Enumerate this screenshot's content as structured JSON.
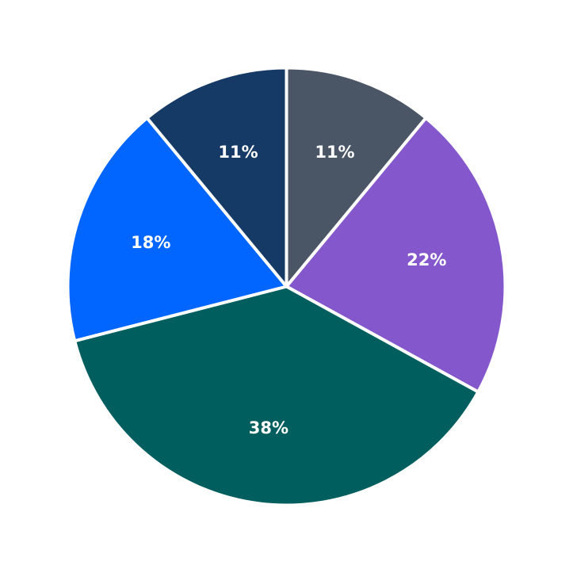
{
  "chart_data": {
    "type": "pie",
    "title": "",
    "start_angle_deg": 90,
    "direction": "clockwise",
    "slices": [
      {
        "value": 11,
        "label": "11%",
        "color": "#4a5565"
      },
      {
        "value": 22,
        "label": "22%",
        "color": "#8458cc"
      },
      {
        "value": 38,
        "label": "38%",
        "color": "#005e5e"
      },
      {
        "value": 18,
        "label": "18%",
        "color": "#0066ff"
      },
      {
        "value": 11,
        "label": "11%",
        "color": "#163a66"
      }
    ]
  }
}
